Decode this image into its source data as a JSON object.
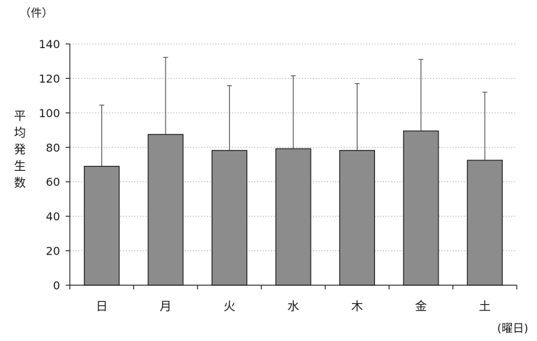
{
  "chart_data": {
    "type": "bar",
    "title": "",
    "unit_label": "（件）",
    "ylabel": "平均発生数",
    "xlabel": "(曜日)",
    "categories": [
      "日",
      "月",
      "火",
      "水",
      "木",
      "金",
      "土"
    ],
    "series": [
      {
        "values": [
          69,
          87.5,
          78.2,
          79.2,
          78.2,
          89.5,
          72.5
        ],
        "error_upper": [
          104.5,
          132.2,
          115.8,
          121.5,
          117,
          131,
          112
        ]
      }
    ],
    "ylim": [
      0,
      140
    ],
    "yticks": [
      0,
      20,
      40,
      60,
      80,
      100,
      120,
      140
    ],
    "grid": true,
    "legend": "none",
    "colors": {
      "bar": "#8c8c8c",
      "bar_stroke": "#1a1a1a",
      "grid": "#bfbfbf",
      "axis": "#1a1a1a"
    }
  }
}
